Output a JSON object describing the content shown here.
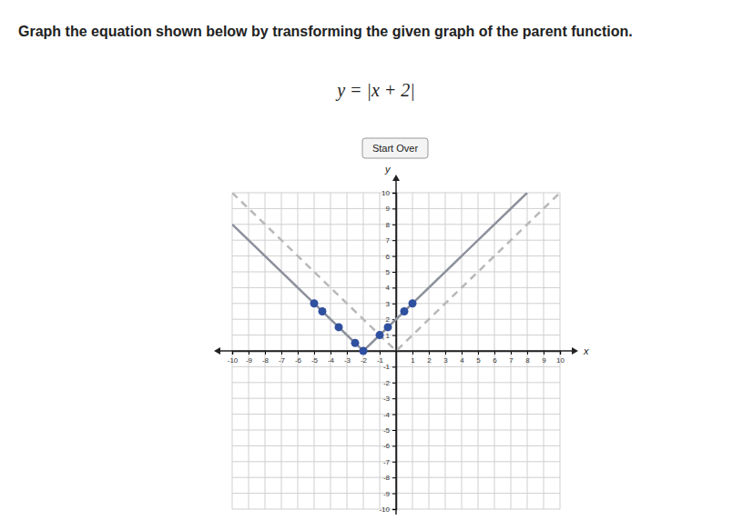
{
  "chart_data": {
    "type": "line",
    "title": "Graph the equation shown below by transforming the given graph of the parent function.",
    "subtitle": "y = |x + 2|",
    "annotations": [
      "Start Over"
    ],
    "x_label": "x",
    "y_label": "y",
    "xlim": [
      -10,
      10
    ],
    "ylim": [
      -10,
      10
    ],
    "xticks": [
      -10,
      -9,
      -8,
      -7,
      -6,
      -5,
      -4,
      -3,
      -2,
      -1,
      1,
      2,
      3,
      4,
      5,
      6,
      7,
      8,
      9,
      10
    ],
    "yticks": [
      -10,
      -9,
      -8,
      -7,
      -6,
      -5,
      -4,
      -3,
      -2,
      -1,
      1,
      2,
      3,
      4,
      5,
      6,
      7,
      8,
      9,
      10
    ],
    "grid": true,
    "series": [
      {
        "type": "line",
        "line_style": "dashed",
        "color": "#b8b8b8",
        "x": [
          -10,
          0,
          10
        ],
        "values": [
          10,
          0,
          10
        ]
      },
      {
        "type": "line",
        "line_style": "solid",
        "color": "#8c919c",
        "x": [
          -10,
          -2,
          8
        ],
        "values": [
          8,
          0,
          10
        ]
      },
      {
        "type": "scatter",
        "marker": "circle",
        "color": "#2f4f9f",
        "x": [
          -5,
          -4.5,
          -3.5,
          -2.5,
          -2,
          -1,
          -0.5,
          0.5,
          1
        ],
        "values": [
          3,
          2.5,
          1.5,
          0.5,
          0,
          1,
          1.5,
          2.5,
          3
        ]
      }
    ]
  }
}
